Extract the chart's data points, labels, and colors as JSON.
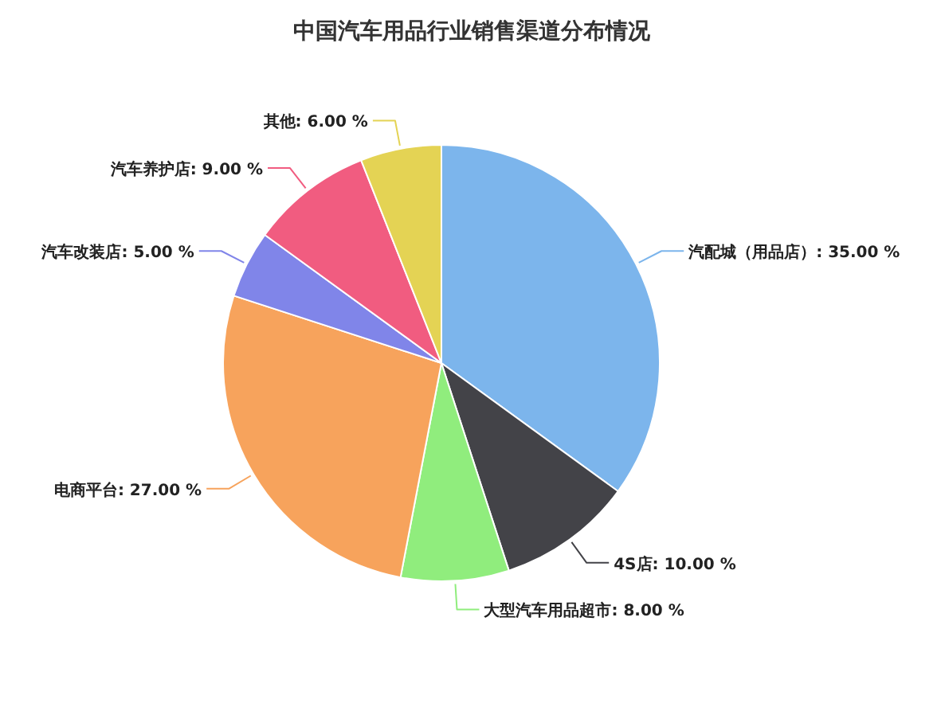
{
  "chart_data": {
    "type": "pie",
    "title": "中国汽车用品行业销售渠道分布情况",
    "categories": [
      "汽配城（用品店）",
      "4S店",
      "大型汽车用品超市",
      "电商平台",
      "汽车改装店",
      "汽车养护店",
      "其他"
    ],
    "values": [
      35,
      10,
      8,
      27,
      5,
      9,
      6
    ],
    "value_labels": [
      "35.00 %",
      "10.00 %",
      "8.00 %",
      "27.00 %",
      "5.00 %",
      "9.00 %",
      "6.00 %"
    ],
    "colors": [
      "#7cb5ec",
      "#434348",
      "#90ed7d",
      "#f7a35c",
      "#8085e9",
      "#f15c80",
      "#e4d354"
    ]
  }
}
